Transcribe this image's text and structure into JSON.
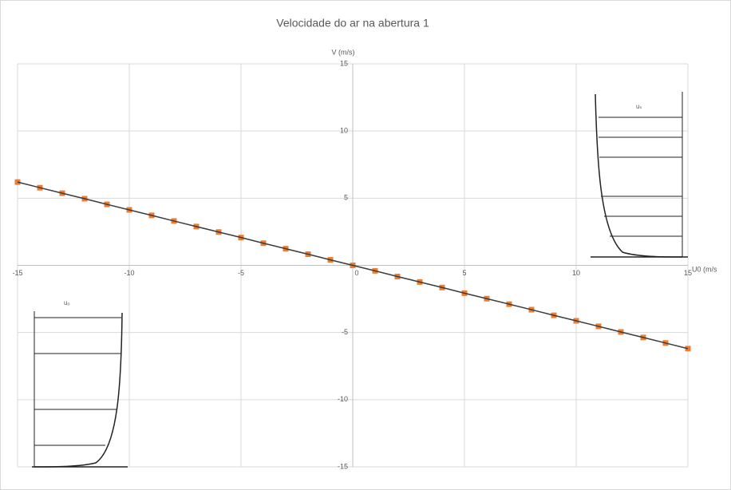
{
  "chart_data": {
    "type": "scatter",
    "title": "Velocidade do ar na abertura 1",
    "y_label": "V (m/s)",
    "x_label": "U0 (m/s",
    "annotations": [
      "uₛ",
      "uₒ"
    ],
    "x": [
      -15,
      -14,
      -13,
      -12,
      -11,
      -10,
      -9,
      -8,
      -7,
      -6,
      -5,
      -4,
      -3,
      -2,
      -1,
      0,
      1,
      2,
      3,
      4,
      5,
      6,
      7,
      8,
      9,
      10,
      11,
      12,
      13,
      14,
      15
    ],
    "series": [
      {
        "name": "V",
        "color": "#ed7d31",
        "line_color": "#3b3b3b",
        "values": [
          6.2,
          5.78,
          5.37,
          4.96,
          4.54,
          4.13,
          3.72,
          3.3,
          2.89,
          2.48,
          2.07,
          1.65,
          1.24,
          0.83,
          0.41,
          0,
          -0.41,
          -0.83,
          -1.24,
          -1.65,
          -2.07,
          -2.48,
          -2.89,
          -3.3,
          -3.72,
          -4.13,
          -4.54,
          -4.96,
          -5.37,
          -5.78,
          -6.2
        ]
      }
    ],
    "xlim": [
      -15,
      15
    ],
    "ylim": [
      -15,
      15
    ],
    "xticks": [
      -15,
      -10,
      -5,
      0,
      5,
      10,
      15
    ],
    "yticks": [
      -15,
      -10,
      -5,
      5,
      10,
      15
    ],
    "grid": true
  }
}
